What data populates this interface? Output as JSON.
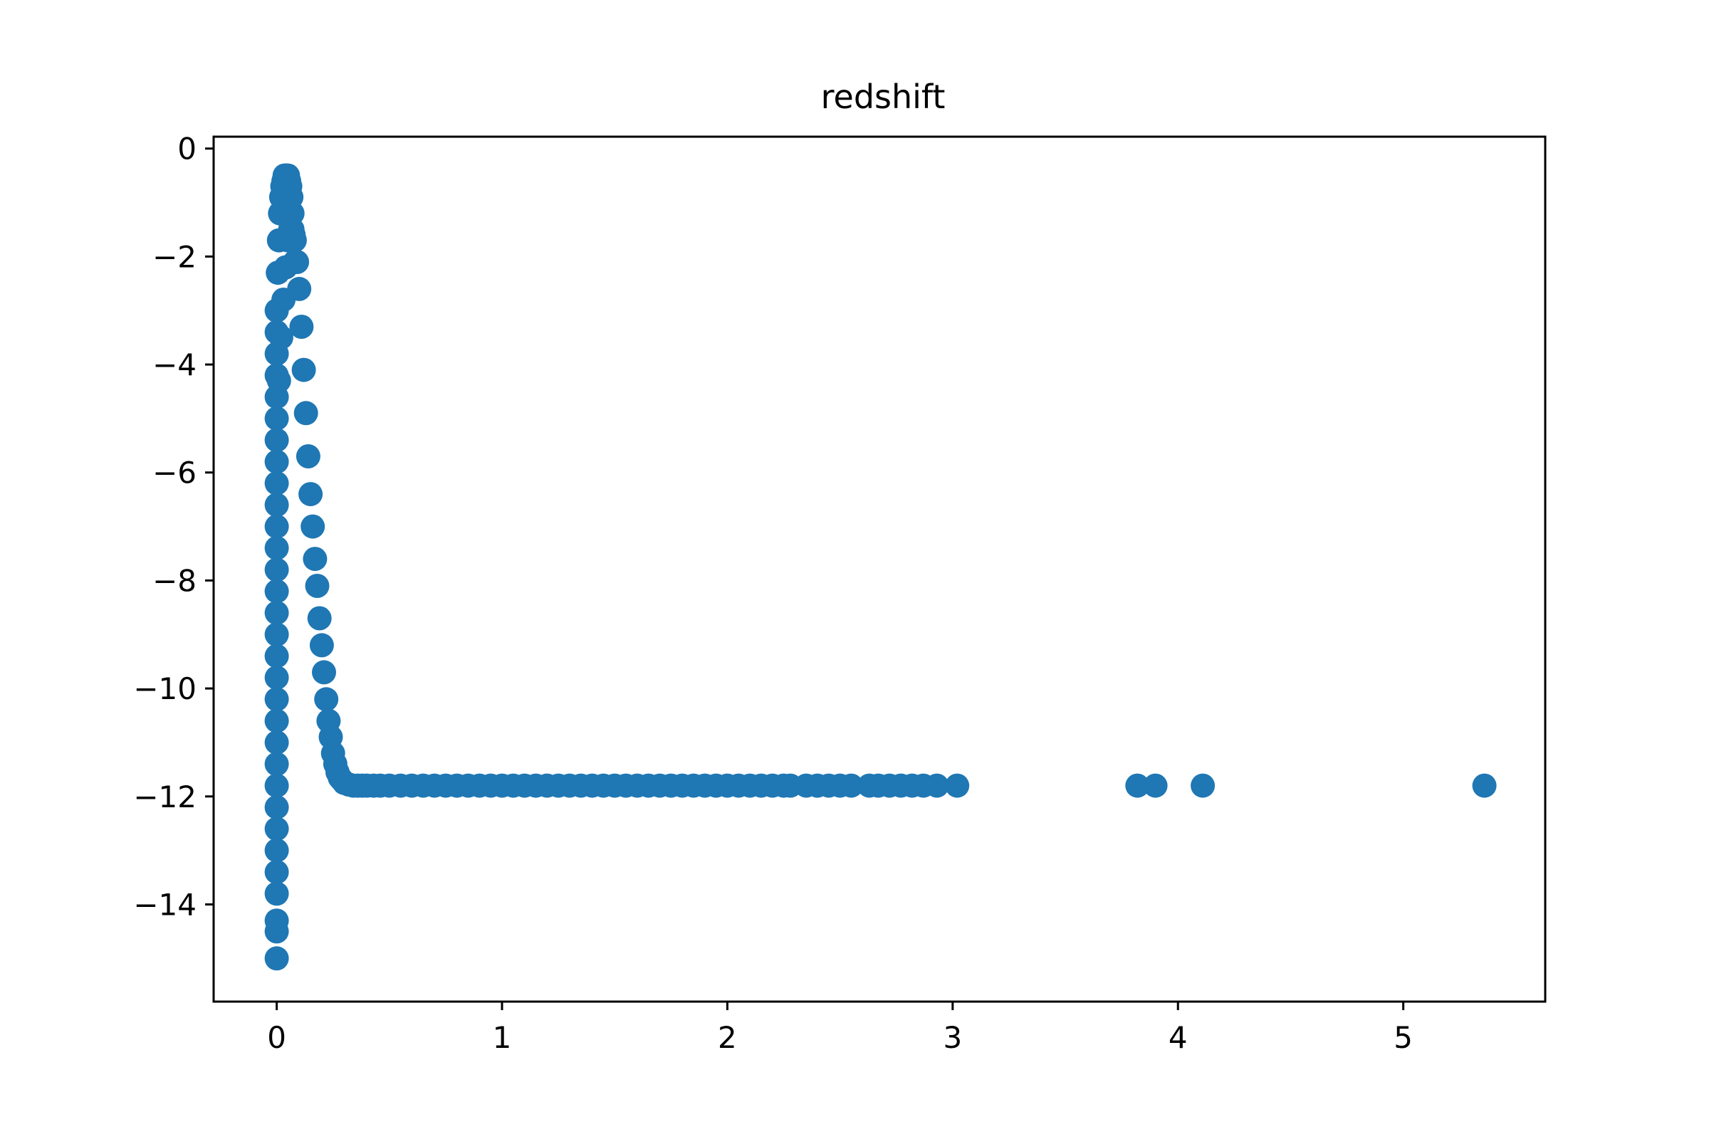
{
  "chart_data": {
    "type": "scatter",
    "title": "redshift",
    "xlabel": "",
    "ylabel": "",
    "xlim": [
      -0.28,
      5.63
    ],
    "ylim": [
      -15.8,
      0.22
    ],
    "xticks": [
      0,
      1,
      2,
      3,
      4,
      5
    ],
    "xtick_labels": [
      "0",
      "1",
      "2",
      "3",
      "4",
      "5"
    ],
    "yticks": [
      0,
      -2,
      -4,
      -6,
      -8,
      -10,
      -12,
      -14
    ],
    "ytick_labels": [
      "0",
      "−2",
      "−4",
      "−6",
      "−8",
      "−10",
      "−12",
      "−14"
    ],
    "grid": false,
    "legend": "none",
    "marker_color": "#1f77b4",
    "series": [
      {
        "x": [
          0.0,
          0.0,
          0.0,
          0.0,
          0.0,
          0.0,
          0.0,
          0.0,
          0.0,
          0.0,
          0.0,
          0.0,
          0.0,
          0.0,
          0.0,
          0.0,
          0.0,
          0.0,
          0.0,
          0.0,
          0.0,
          0.0,
          0.0,
          0.0,
          0.0,
          0.0,
          0.0,
          0.0,
          0.0,
          0.0,
          0.0,
          0.005,
          0.01,
          0.015,
          0.02,
          0.025,
          0.03,
          0.035,
          0.04,
          0.045,
          0.05,
          0.055,
          0.06,
          0.065,
          0.07,
          0.075,
          0.08,
          0.01,
          0.02,
          0.03,
          0.04,
          0.05,
          0.06,
          0.07,
          0.08,
          0.09,
          0.1,
          0.11,
          0.12,
          0.13,
          0.14,
          0.15,
          0.16,
          0.17,
          0.18,
          0.19,
          0.2,
          0.21,
          0.22,
          0.23,
          0.24,
          0.25,
          0.26,
          0.27,
          0.28,
          0.29,
          0.3,
          0.32,
          0.34,
          0.36,
          0.38,
          0.4,
          0.43,
          0.46,
          0.5,
          0.55,
          0.6,
          0.65,
          0.7,
          0.75,
          0.8,
          0.85,
          0.9,
          0.95,
          1.0,
          1.05,
          1.1,
          1.15,
          1.2,
          1.25,
          1.3,
          1.35,
          1.4,
          1.45,
          1.5,
          1.55,
          1.6,
          1.65,
          1.7,
          1.75,
          1.8,
          1.85,
          1.9,
          1.95,
          2.0,
          2.05,
          2.1,
          2.15,
          2.2,
          2.25,
          2.28,
          2.35,
          2.4,
          2.45,
          2.5,
          2.55,
          2.63,
          2.67,
          2.72,
          2.77,
          2.82,
          2.87,
          2.93,
          3.02,
          3.82,
          3.9,
          4.11,
          5.36
        ],
        "y": [
          -15.0,
          -14.5,
          -14.3,
          -13.8,
          -13.4,
          -13.0,
          -12.6,
          -12.2,
          -11.8,
          -11.4,
          -11.0,
          -10.6,
          -10.2,
          -9.8,
          -9.4,
          -9.0,
          -8.6,
          -8.2,
          -7.8,
          -7.4,
          -7.0,
          -6.6,
          -6.2,
          -5.8,
          -5.4,
          -5.0,
          -4.6,
          -4.2,
          -3.8,
          -3.4,
          -3.0,
          -2.3,
          -1.7,
          -1.2,
          -0.9,
          -0.7,
          -0.6,
          -0.5,
          -0.5,
          -0.5,
          -0.5,
          -0.6,
          -0.7,
          -0.9,
          -1.2,
          -1.6,
          -2.1,
          -4.3,
          -3.5,
          -2.8,
          -2.2,
          -1.7,
          -1.5,
          -1.5,
          -1.7,
          -2.1,
          -2.6,
          -3.3,
          -4.1,
          -4.9,
          -5.7,
          -6.4,
          -7.0,
          -7.6,
          -8.1,
          -8.7,
          -9.2,
          -9.7,
          -10.2,
          -10.6,
          -10.9,
          -11.2,
          -11.4,
          -11.55,
          -11.65,
          -11.7,
          -11.75,
          -11.78,
          -11.8,
          -11.8,
          -11.8,
          -11.8,
          -11.8,
          -11.8,
          -11.8,
          -11.8,
          -11.8,
          -11.8,
          -11.8,
          -11.8,
          -11.8,
          -11.8,
          -11.8,
          -11.8,
          -11.8,
          -11.8,
          -11.8,
          -11.8,
          -11.8,
          -11.8,
          -11.8,
          -11.8,
          -11.8,
          -11.8,
          -11.8,
          -11.8,
          -11.8,
          -11.8,
          -11.8,
          -11.8,
          -11.8,
          -11.8,
          -11.8,
          -11.8,
          -11.8,
          -11.8,
          -11.8,
          -11.8,
          -11.8,
          -11.8,
          -11.8,
          -11.8,
          -11.8,
          -11.8,
          -11.8,
          -11.8,
          -11.8,
          -11.8,
          -11.8,
          -11.8,
          -11.8,
          -11.8,
          -11.8,
          -11.8,
          -11.8,
          -11.8,
          -11.8,
          -11.8
        ]
      }
    ]
  }
}
